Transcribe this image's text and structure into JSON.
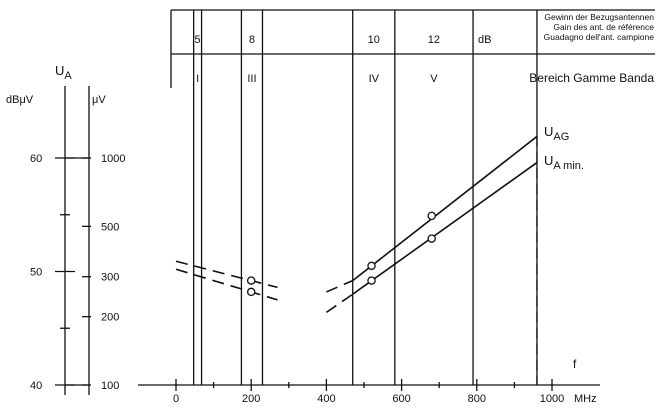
{
  "chart_data": {
    "type": "line",
    "x_axis": {
      "ticks": [
        0,
        200,
        400,
        600,
        800,
        1000
      ],
      "tick_labels": [
        "0",
        "200",
        "400",
        "600",
        "800",
        "1000"
      ],
      "unit": "MHz",
      "variable": "f",
      "range": [
        0,
        1000
      ]
    },
    "left_axes": {
      "title": "U",
      "title_sub": "A",
      "dbuv_unit": "dBμV",
      "uv_unit": "μV",
      "dbuv_ticks": [
        40,
        50,
        60
      ],
      "dbuv_labels": [
        "40",
        "50",
        "60"
      ],
      "uv_ticks": [
        100,
        200,
        300,
        500,
        1000
      ],
      "uv_labels": [
        "100",
        "200",
        "300",
        "500",
        "1000"
      ],
      "dbuv_range": [
        40,
        62.5
      ]
    },
    "bands": {
      "header_gain": [
        "Gewinn der Bezugsantennen",
        "Gain des ant. de référence",
        "Guadagno dell'ant. campione"
      ],
      "gain_unit": "dB",
      "gain_values": [
        "5",
        "8",
        "10",
        "12"
      ],
      "band_names": [
        "I",
        "III",
        "IV",
        "V"
      ],
      "range_label": "Bereich Gamme Banda",
      "boundaries_mhz": [
        47,
        68,
        174,
        230,
        470,
        582,
        790,
        960
      ]
    },
    "series": [
      {
        "name": "U",
        "name_sub": "AG",
        "segments": [
          {
            "style": "dashed",
            "points": [
              [
                0,
                50.9
              ],
              [
                270,
                48.6
              ]
            ]
          },
          {
            "style": "dashed",
            "points": [
              [
                400,
                48.2
              ],
              [
                470,
                49.2
              ]
            ]
          },
          {
            "style": "solid",
            "points": [
              [
                470,
                49.2
              ],
              [
                960,
                61.9
              ]
            ]
          }
        ],
        "markers": [
          [
            200,
            49.2
          ],
          [
            520,
            50.5
          ],
          [
            680,
            54.9
          ]
        ]
      },
      {
        "name": "U",
        "name_sub": "A min.",
        "segments": [
          {
            "style": "dashed",
            "points": [
              [
                0,
                50.2
              ],
              [
                270,
                47.5
              ]
            ]
          },
          {
            "style": "dashed",
            "points": [
              [
                400,
                46.4
              ],
              [
                470,
                48.0
              ]
            ]
          },
          {
            "style": "solid",
            "points": [
              [
                470,
                48.0
              ],
              [
                960,
                59.6
              ]
            ]
          }
        ],
        "markers": [
          [
            200,
            48.2
          ],
          [
            520,
            49.2
          ],
          [
            680,
            52.9
          ]
        ]
      }
    ],
    "drop_line_x": 960
  },
  "colors": {
    "ink": "#111111",
    "background": "#ffffff"
  }
}
